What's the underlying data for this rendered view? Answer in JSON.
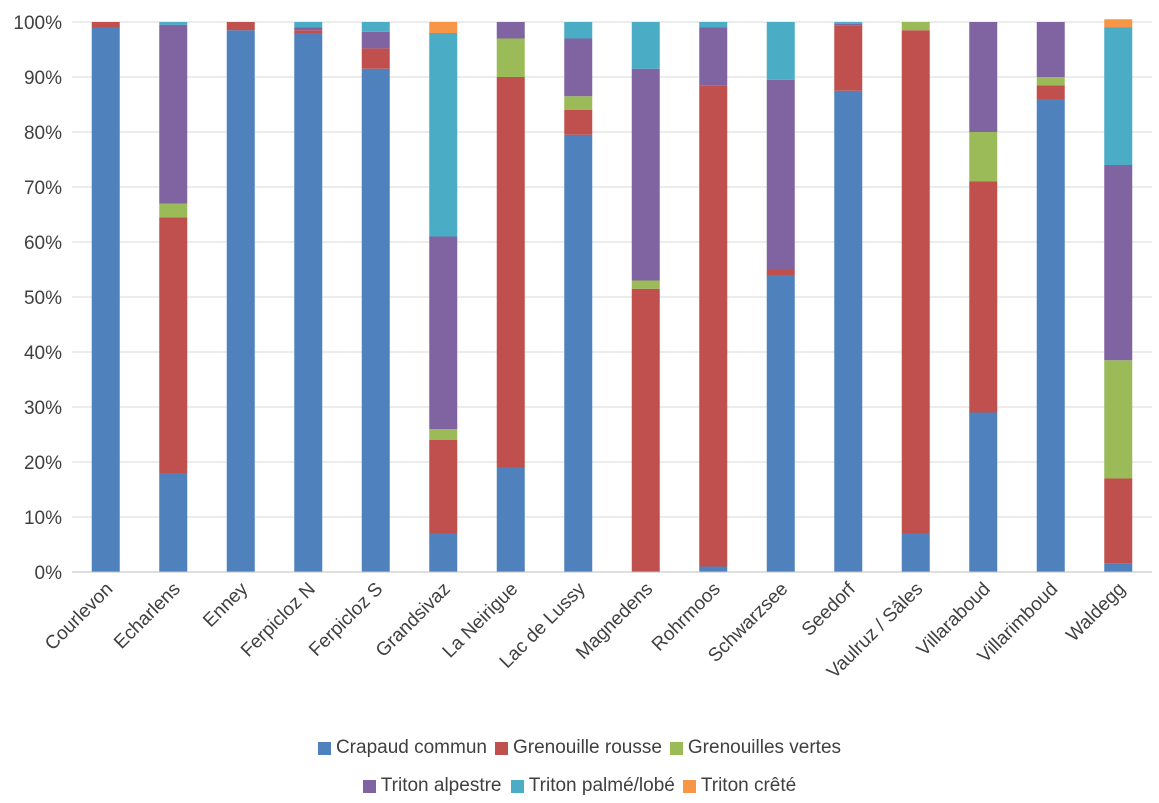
{
  "chart_data": {
    "type": "bar",
    "stacked": true,
    "title": "",
    "xlabel": "",
    "ylabel": "",
    "ylim": [
      0,
      100
    ],
    "yticks": [
      "0%",
      "10%",
      "20%",
      "30%",
      "40%",
      "50%",
      "60%",
      "70%",
      "80%",
      "90%",
      "100%"
    ],
    "grid": true,
    "legend_position": "bottom",
    "categories": [
      "Courlevon",
      "Echarlens",
      "Enney",
      "Ferpicloz N",
      "Ferpicloz S",
      "Grandsivaz",
      "La Neirigue",
      "Lac de Lussy",
      "Magnedens",
      "Rohrmoos",
      "Schwarzsee",
      "Seedorf",
      "Vaulruz / Sâles",
      "Villaraboud",
      "Villarimboud",
      "Waldegg"
    ],
    "series": [
      {
        "name": "Crapaud commun",
        "color": "#4f81bd",
        "values": [
          99,
          18,
          98.5,
          98,
          91.5,
          7,
          19,
          79.5,
          0,
          1,
          54,
          87.5,
          7,
          29,
          86,
          1.5
        ]
      },
      {
        "name": "Grenouille rousse",
        "color": "#c0504d",
        "values": [
          1,
          46.5,
          1.5,
          0.5,
          3.7,
          17,
          71,
          4.5,
          51.5,
          87.5,
          1,
          11.8,
          91.5,
          42,
          2.5,
          15.5
        ]
      },
      {
        "name": "Grenouilles vertes",
        "color": "#9bbb59",
        "values": [
          0,
          2.5,
          0,
          0,
          0,
          2,
          7,
          2.5,
          1.5,
          0,
          0,
          0,
          1.5,
          9,
          1.5,
          21.5
        ]
      },
      {
        "name": "Triton alpestre",
        "color": "#8064a2",
        "values": [
          0,
          32.5,
          0,
          0.5,
          3,
          35,
          3,
          10.5,
          38.5,
          10.5,
          34.5,
          0.4,
          0,
          20,
          10,
          35.5
        ]
      },
      {
        "name": "Triton palmé/lobé",
        "color": "#4bacc6",
        "values": [
          0,
          0.5,
          0,
          1,
          1.8,
          37,
          0,
          3,
          8.5,
          1,
          10.5,
          0.3,
          0,
          0,
          0,
          25
        ]
      },
      {
        "name": "Triton crêté",
        "color": "#f79646",
        "values": [
          0,
          0,
          0,
          0,
          0,
          2,
          0,
          0,
          0,
          0,
          0,
          0,
          0,
          0,
          0,
          1.5
        ]
      }
    ]
  }
}
